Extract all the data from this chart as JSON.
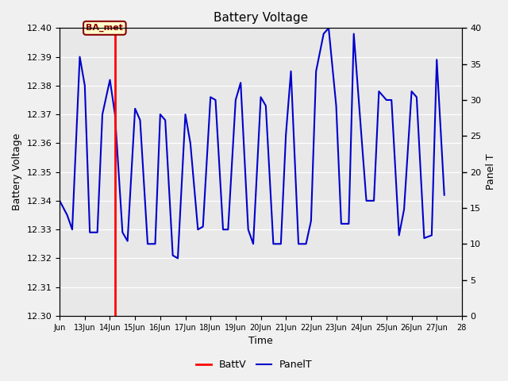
{
  "title": "Battery Voltage",
  "xlabel": "Time",
  "ylabel_left": "Battery Voltage",
  "ylabel_right": "Panel T",
  "xlim": [
    12,
    28
  ],
  "ylim_left": [
    12.3,
    12.4
  ],
  "ylim_right": [
    0,
    40
  ],
  "xtick_positions": [
    12,
    13,
    14,
    15,
    16,
    17,
    18,
    19,
    20,
    21,
    22,
    23,
    24,
    25,
    26,
    27,
    28
  ],
  "xtick_labels": [
    "Jun",
    "13Jun",
    "14Jun",
    "15Jun",
    "16Jun",
    "17Jun",
    "18Jun",
    "19Jun",
    "20Jun",
    "21Jun",
    "22Jun",
    "23Jun",
    "24Jun",
    "25Jun",
    "26Jun",
    "27Jun",
    "28"
  ],
  "ytick_left": [
    12.3,
    12.31,
    12.32,
    12.33,
    12.34,
    12.35,
    12.36,
    12.37,
    12.38,
    12.39,
    12.4
  ],
  "ytick_right": [
    0,
    5,
    10,
    15,
    20,
    25,
    30,
    35,
    40
  ],
  "red_line_x": 14.2,
  "annotation_text": "BA_met",
  "bg_color": "#f0f0f0",
  "plot_bg_color": "#e8e8e8",
  "blue_line_color": "#0000cc",
  "red_line_color": "#ff0000",
  "panel_t_x": [
    12.0,
    12.3,
    12.5,
    12.8,
    13.0,
    13.2,
    13.5,
    13.7,
    14.0,
    14.2,
    14.5,
    14.7,
    15.0,
    15.2,
    15.5,
    15.8,
    16.0,
    16.2,
    16.5,
    16.7,
    17.0,
    17.2,
    17.5,
    17.7,
    18.0,
    18.2,
    18.5,
    18.7,
    19.0,
    19.2,
    19.5,
    19.7,
    20.0,
    20.2,
    20.5,
    20.8,
    21.0,
    21.2,
    21.5,
    21.8,
    22.0,
    22.2,
    22.5,
    22.7,
    23.0,
    23.2,
    23.5,
    23.7,
    24.0,
    24.2,
    24.5,
    24.7,
    25.0,
    25.2,
    25.5,
    25.7,
    26.0,
    26.2,
    26.5,
    26.8,
    27.0,
    27.3
  ],
  "panel_t_y": [
    12.34,
    12.335,
    12.33,
    12.39,
    12.38,
    12.329,
    12.329,
    12.37,
    12.382,
    12.37,
    12.329,
    12.326,
    12.372,
    12.368,
    12.325,
    12.325,
    12.37,
    12.368,
    12.321,
    12.32,
    12.37,
    12.36,
    12.33,
    12.331,
    12.376,
    12.375,
    12.33,
    12.33,
    12.375,
    12.381,
    12.33,
    12.325,
    12.376,
    12.373,
    12.325,
    12.325,
    12.363,
    12.385,
    12.325,
    12.325,
    12.333,
    12.385,
    12.398,
    12.4,
    12.373,
    12.332,
    12.332,
    12.398,
    12.363,
    12.34,
    12.34,
    12.378,
    12.375,
    12.375,
    12.328,
    12.337,
    12.378,
    12.376,
    12.327,
    12.328,
    12.389,
    12.342
  ]
}
